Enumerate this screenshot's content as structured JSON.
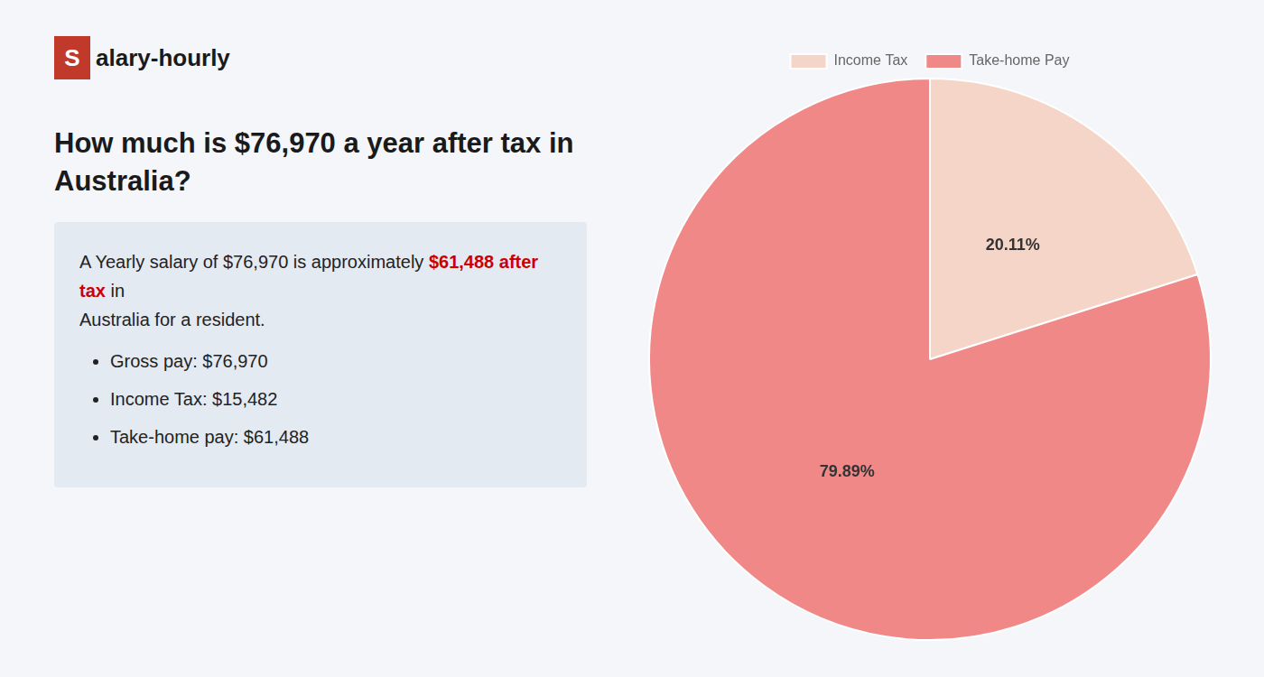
{
  "chart_data": {
    "type": "pie",
    "logo": {
      "mark": "S",
      "text": "alary-hourly",
      "color": "#c0392b"
    },
    "title": [
      "How much is $76,970 a year after tax in",
      "Australia?"
    ],
    "summary": [
      {
        "text": "A Yearly salary of $76,970 is approximately "
      },
      {
        "text": "$61,488 after tax",
        "color": "#cc0000"
      },
      {
        "text": " in"
      }
    ],
    "summary_line2": "Australia for a resident.",
    "bullets": [
      "Gross pay: $76,970",
      "Income Tax: $15,482",
      "Take-home pay: $61,488"
    ],
    "categories": [
      "Income Tax",
      "Take-home Pay"
    ],
    "values": [
      20.11,
      79.89
    ],
    "value_labels": [
      "20.11%",
      "79.89%"
    ],
    "colors": [
      "#f5d5c8",
      "#f08888"
    ],
    "data_labels": true,
    "legend": "top"
  }
}
